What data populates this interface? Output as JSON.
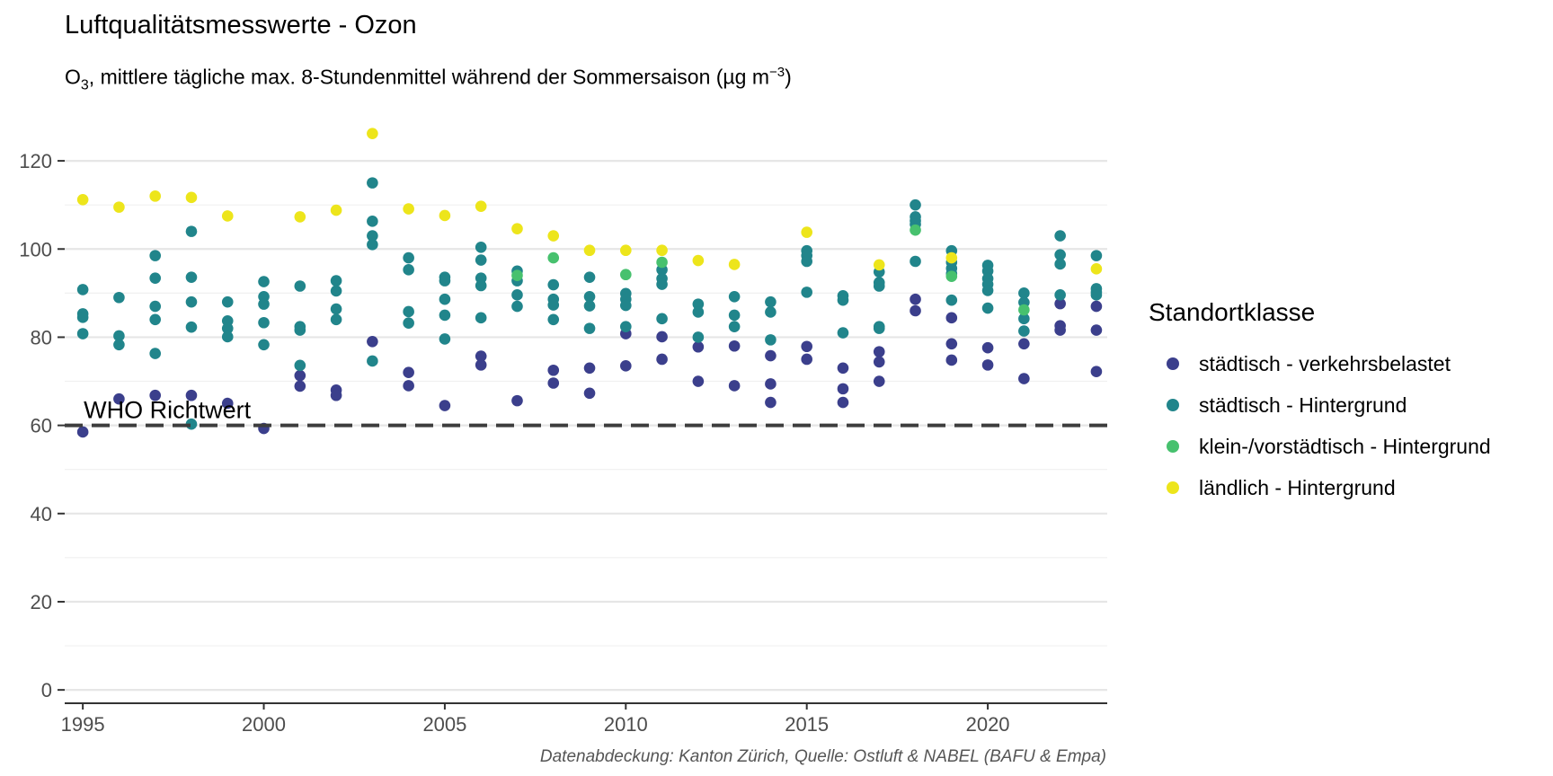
{
  "chart_data": {
    "type": "scatter",
    "title": "Luftqualitätsmesswerte - Ozon",
    "subtitle": {
      "prefix": "O",
      "prefix_sub": "3",
      "text": ", mittlere tägliche max. 8-Stundenmittel während der Sommersaison (µg m",
      "unit_sup": "−3",
      "suffix": ")"
    },
    "caption": "Datenabdeckung: Kanton Zürich, Quelle: Ostluft & NABEL (BAFU & Empa)",
    "xlabel": "",
    "ylabel": "",
    "xlim": [
      1995,
      2023
    ],
    "ylim": [
      0,
      130
    ],
    "x_ticks": [
      1995,
      2000,
      2005,
      2010,
      2015,
      2020
    ],
    "y_ticks": [
      0,
      20,
      40,
      60,
      80,
      100,
      120
    ],
    "grid": true,
    "legend": {
      "title": "Standortklasse",
      "position": "right"
    },
    "reference_line": {
      "y": 60,
      "label": "WHO Richtwert",
      "style": "dashed"
    },
    "series": [
      {
        "name": "städtisch - verkehrsbelastet",
        "color": "#3b3f8c",
        "points": [
          [
            1995,
            58.5
          ],
          [
            1996,
            66
          ],
          [
            1997,
            66.8
          ],
          [
            1998,
            66.8
          ],
          [
            1999,
            65
          ],
          [
            2000,
            59.3
          ],
          [
            2001,
            71.3
          ],
          [
            2001,
            68.9
          ],
          [
            2002,
            68
          ],
          [
            2002,
            66.8
          ],
          [
            2003,
            79
          ],
          [
            2004,
            72
          ],
          [
            2004,
            69
          ],
          [
            2005,
            64.5
          ],
          [
            2006,
            75.7
          ],
          [
            2006,
            73.7
          ],
          [
            2007,
            65.6
          ],
          [
            2008,
            72.5
          ],
          [
            2008,
            69.6
          ],
          [
            2009,
            73
          ],
          [
            2009,
            67.3
          ],
          [
            2010,
            80.8
          ],
          [
            2010,
            73.5
          ],
          [
            2011,
            80.1
          ],
          [
            2011,
            75
          ],
          [
            2012,
            77.8
          ],
          [
            2012,
            70
          ],
          [
            2013,
            78
          ],
          [
            2013,
            69
          ],
          [
            2014,
            75.8
          ],
          [
            2014,
            69.4
          ],
          [
            2014,
            65.2
          ],
          [
            2015,
            77.9
          ],
          [
            2015,
            75
          ],
          [
            2016,
            73
          ],
          [
            2016,
            68.3
          ],
          [
            2016,
            65.2
          ],
          [
            2017,
            76.7
          ],
          [
            2017,
            74.4
          ],
          [
            2017,
            70
          ],
          [
            2018,
            88.6
          ],
          [
            2018,
            86
          ],
          [
            2019,
            84.4
          ],
          [
            2019,
            78.5
          ],
          [
            2019,
            74.8
          ],
          [
            2020,
            77.6
          ],
          [
            2020,
            73.7
          ],
          [
            2021,
            78.5
          ],
          [
            2021,
            70.6
          ],
          [
            2022,
            87.6
          ],
          [
            2022,
            82.6
          ],
          [
            2022,
            81.6
          ],
          [
            2023,
            87
          ],
          [
            2023,
            81.6
          ],
          [
            2023,
            72.2
          ]
        ]
      },
      {
        "name": "städtisch - Hintergrund",
        "color": "#21858b",
        "points": [
          [
            1995,
            90.8
          ],
          [
            1995,
            85.3
          ],
          [
            1995,
            84.5
          ],
          [
            1995,
            80.8
          ],
          [
            1996,
            89
          ],
          [
            1996,
            80.3
          ],
          [
            1996,
            78.3
          ],
          [
            1997,
            98.5
          ],
          [
            1997,
            93.4
          ],
          [
            1997,
            87
          ],
          [
            1997,
            84
          ],
          [
            1997,
            76.3
          ],
          [
            1998,
            104
          ],
          [
            1998,
            93.6
          ],
          [
            1998,
            88
          ],
          [
            1998,
            82.3
          ],
          [
            1998,
            60.3
          ],
          [
            1999,
            88
          ],
          [
            1999,
            83.7
          ],
          [
            1999,
            82
          ],
          [
            1999,
            80.1
          ],
          [
            2000,
            92.6
          ],
          [
            2000,
            89.2
          ],
          [
            2000,
            87.5
          ],
          [
            2000,
            83.3
          ],
          [
            2000,
            78.3
          ],
          [
            2001,
            91.6
          ],
          [
            2001,
            82.4
          ],
          [
            2001,
            81.6
          ],
          [
            2001,
            73.6
          ],
          [
            2002,
            92.8
          ],
          [
            2002,
            90.5
          ],
          [
            2002,
            86.4
          ],
          [
            2002,
            84
          ],
          [
            2003,
            115
          ],
          [
            2003,
            106.3
          ],
          [
            2003,
            103
          ],
          [
            2003,
            101
          ],
          [
            2003,
            74.6
          ],
          [
            2004,
            98
          ],
          [
            2004,
            95.3
          ],
          [
            2004,
            85.8
          ],
          [
            2004,
            83.2
          ],
          [
            2005,
            93.6
          ],
          [
            2005,
            92.8
          ],
          [
            2005,
            88.6
          ],
          [
            2005,
            85
          ],
          [
            2005,
            79.6
          ],
          [
            2006,
            100.4
          ],
          [
            2006,
            97.5
          ],
          [
            2006,
            93.4
          ],
          [
            2006,
            91.7
          ],
          [
            2006,
            84.4
          ],
          [
            2007,
            95
          ],
          [
            2007,
            92.8
          ],
          [
            2007,
            89.6
          ],
          [
            2007,
            87
          ],
          [
            2008,
            91.9
          ],
          [
            2008,
            88.6
          ],
          [
            2008,
            87.3
          ],
          [
            2008,
            84
          ],
          [
            2009,
            93.6
          ],
          [
            2009,
            89.2
          ],
          [
            2009,
            87.1
          ],
          [
            2009,
            82
          ],
          [
            2010,
            89.9
          ],
          [
            2010,
            88.6
          ],
          [
            2010,
            87.2
          ],
          [
            2010,
            82.4
          ],
          [
            2011,
            95.3
          ],
          [
            2011,
            93.3
          ],
          [
            2011,
            92
          ],
          [
            2011,
            84.2
          ],
          [
            2012,
            87.5
          ],
          [
            2012,
            85.7
          ],
          [
            2012,
            80
          ],
          [
            2013,
            89.2
          ],
          [
            2013,
            85
          ],
          [
            2013,
            82.4
          ],
          [
            2014,
            88
          ],
          [
            2014,
            85.7
          ],
          [
            2014,
            79.4
          ],
          [
            2015,
            99.6
          ],
          [
            2015,
            98.5
          ],
          [
            2015,
            97.2
          ],
          [
            2015,
            90.2
          ],
          [
            2016,
            89.4
          ],
          [
            2016,
            88.4
          ],
          [
            2016,
            81
          ],
          [
            2017,
            94.8
          ],
          [
            2017,
            92.4
          ],
          [
            2017,
            91.6
          ],
          [
            2017,
            82.4
          ],
          [
            2017,
            82
          ],
          [
            2018,
            110
          ],
          [
            2018,
            107.3
          ],
          [
            2018,
            106.4
          ],
          [
            2018,
            105.6
          ],
          [
            2018,
            97.2
          ],
          [
            2019,
            99.6
          ],
          [
            2019,
            97
          ],
          [
            2019,
            95.6
          ],
          [
            2019,
            94.4
          ],
          [
            2019,
            88.4
          ],
          [
            2020,
            96.3
          ],
          [
            2020,
            95
          ],
          [
            2020,
            93.3
          ],
          [
            2020,
            92
          ],
          [
            2020,
            90.6
          ],
          [
            2020,
            86.6
          ],
          [
            2021,
            90
          ],
          [
            2021,
            87.9
          ],
          [
            2021,
            84.2
          ],
          [
            2021,
            81.4
          ],
          [
            2022,
            103
          ],
          [
            2022,
            98.7
          ],
          [
            2022,
            96.6
          ],
          [
            2022,
            89.6
          ],
          [
            2023,
            98.5
          ],
          [
            2023,
            91
          ],
          [
            2023,
            90.2
          ],
          [
            2023,
            89.6
          ]
        ]
      },
      {
        "name": "klein-/vorstädtisch - Hintergrund",
        "color": "#47c16e",
        "points": [
          [
            2007,
            94
          ],
          [
            2008,
            98
          ],
          [
            2010,
            94.2
          ],
          [
            2011,
            97
          ],
          [
            2018,
            104.3
          ],
          [
            2019,
            93.8
          ],
          [
            2021,
            86.2
          ]
        ]
      },
      {
        "name": "ländlich - Hintergrund",
        "color": "#ede51b",
        "points": [
          [
            1995,
            111.2
          ],
          [
            1996,
            109.5
          ],
          [
            1997,
            112
          ],
          [
            1998,
            111.7
          ],
          [
            1999,
            107.5
          ],
          [
            2001,
            107.3
          ],
          [
            2002,
            108.8
          ],
          [
            2003,
            126.2
          ],
          [
            2004,
            109.1
          ],
          [
            2005,
            107.6
          ],
          [
            2006,
            109.7
          ],
          [
            2007,
            104.6
          ],
          [
            2008,
            103
          ],
          [
            2009,
            99.7
          ],
          [
            2010,
            99.7
          ],
          [
            2011,
            99.7
          ],
          [
            2012,
            97.4
          ],
          [
            2013,
            96.5
          ],
          [
            2015,
            103.8
          ],
          [
            2017,
            96.4
          ],
          [
            2019,
            98
          ],
          [
            2023,
            95.5
          ]
        ]
      }
    ]
  }
}
